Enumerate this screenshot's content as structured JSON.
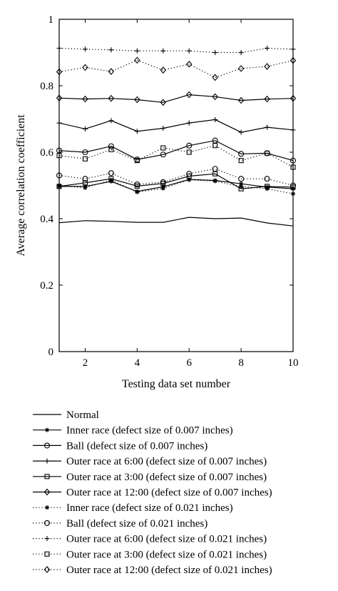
{
  "chart_data": {
    "type": "line",
    "xlabel": "Testing data set number",
    "ylabel": "Average correlation coefficient",
    "xlim": [
      1,
      10
    ],
    "ylim": [
      0,
      1
    ],
    "xticks": [
      2,
      4,
      6,
      8,
      10
    ],
    "yticks": [
      0,
      0.2,
      0.4,
      0.6,
      0.8,
      1
    ],
    "ytick_labels": [
      "0",
      "0.2",
      "0.4",
      "0.6",
      "0.8",
      "1"
    ],
    "grid": false,
    "legend_position": "bottom",
    "x": [
      1,
      2,
      3,
      4,
      5,
      6,
      7,
      8,
      9,
      10
    ],
    "series": [
      {
        "name": "Normal",
        "style": "solid",
        "marker": "none",
        "values": [
          0.388,
          0.394,
          0.392,
          0.389,
          0.389,
          0.404,
          0.4,
          0.402,
          0.387,
          0.378
        ]
      },
      {
        "name": "Inner race (defect size of 0.007 inches)",
        "style": "solid",
        "marker": "asterisk",
        "values": [
          0.497,
          0.497,
          0.512,
          0.482,
          0.496,
          0.518,
          0.515,
          0.505,
          0.495,
          0.49
        ]
      },
      {
        "name": "Ball (defect size of 0.007 inches)",
        "style": "solid",
        "marker": "circle",
        "values": [
          0.605,
          0.6,
          0.618,
          0.578,
          0.593,
          0.62,
          0.635,
          0.595,
          0.597,
          0.575
        ]
      },
      {
        "name": "Outer race at 6:00 (defect size of 0.007 inches)",
        "style": "solid",
        "marker": "plus",
        "values": [
          0.688,
          0.67,
          0.695,
          0.663,
          0.672,
          0.688,
          0.698,
          0.66,
          0.675,
          0.667
        ]
      },
      {
        "name": "Outer race at 3:00 (defect size of 0.007 inches)",
        "style": "solid",
        "marker": "square",
        "values": [
          0.497,
          0.508,
          0.52,
          0.498,
          0.506,
          0.528,
          0.535,
          0.49,
          0.497,
          0.495
        ]
      },
      {
        "name": "Outer race at 12:00 (defect size of 0.007 inches)",
        "style": "solid",
        "marker": "diamond",
        "values": [
          0.763,
          0.76,
          0.762,
          0.758,
          0.75,
          0.773,
          0.767,
          0.756,
          0.76,
          0.762
        ]
      },
      {
        "name": "Inner race (defect size of 0.021 inches)",
        "style": "dotted",
        "marker": "asterisk",
        "values": [
          0.5,
          0.493,
          0.516,
          0.48,
          0.491,
          0.517,
          0.513,
          0.497,
          0.49,
          0.475
        ]
      },
      {
        "name": "Ball (defect size of 0.021 inches)",
        "style": "dotted",
        "marker": "circle",
        "values": [
          0.53,
          0.52,
          0.537,
          0.503,
          0.51,
          0.535,
          0.55,
          0.52,
          0.52,
          0.5
        ]
      },
      {
        "name": "Outer race at 6:00 (defect size of 0.021 inches)",
        "style": "dotted",
        "marker": "plus",
        "values": [
          0.913,
          0.91,
          0.908,
          0.905,
          0.905,
          0.905,
          0.9,
          0.9,
          0.913,
          0.91
        ]
      },
      {
        "name": "Outer race at 3:00 (defect size of 0.021 inches)",
        "style": "dotted",
        "marker": "square",
        "values": [
          0.59,
          0.58,
          0.608,
          0.575,
          0.613,
          0.6,
          0.62,
          0.575,
          0.597,
          0.555
        ]
      },
      {
        "name": "Outer race at 12:00 (defect size of 0.021 inches)",
        "style": "dotted",
        "marker": "diamond",
        "values": [
          0.842,
          0.855,
          0.843,
          0.877,
          0.847,
          0.865,
          0.825,
          0.852,
          0.858,
          0.876
        ]
      }
    ]
  }
}
